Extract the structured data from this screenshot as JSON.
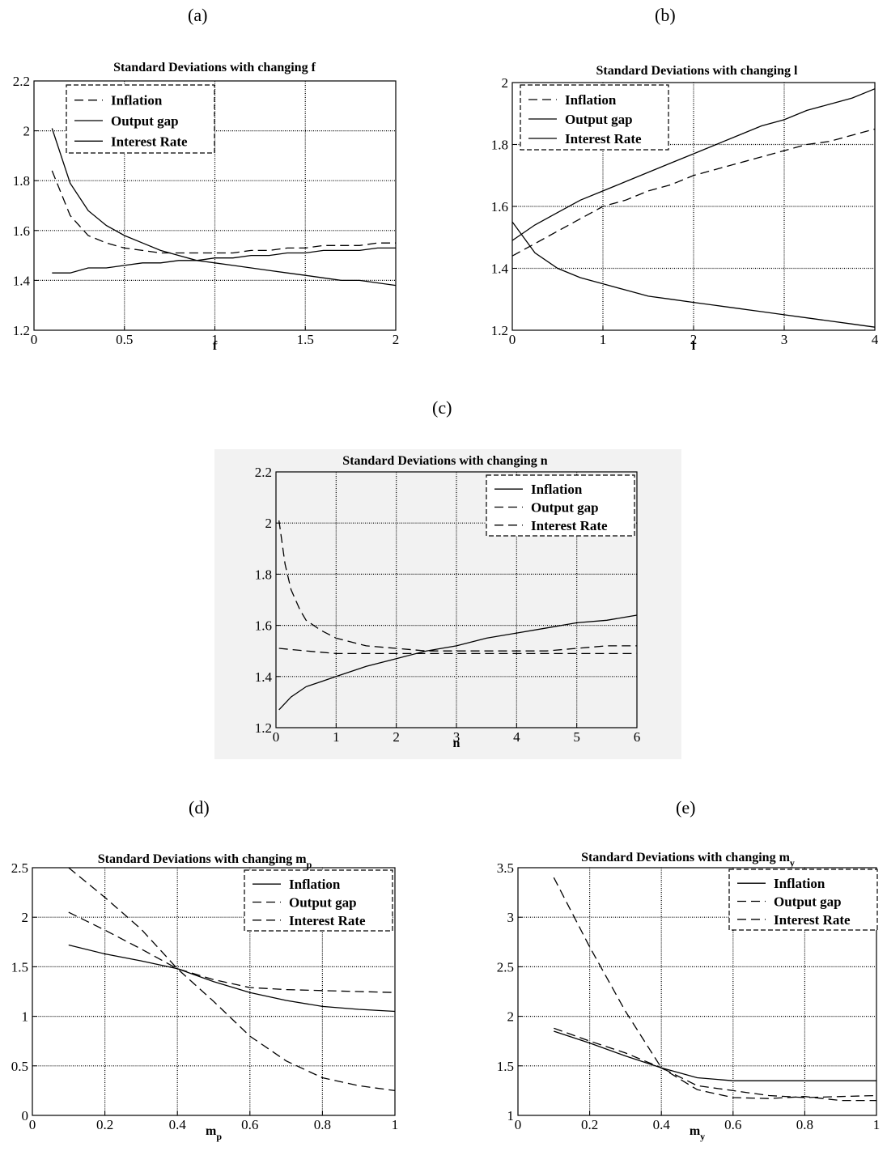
{
  "labels": {
    "a": "(a)",
    "b": "(b)",
    "c": "(c)",
    "d": "(d)",
    "e": "(e)"
  },
  "chart_data": [
    {
      "type": "line",
      "title": "Standard Deviations with changing f",
      "xlabel": "f",
      "xlim": [
        0,
        2
      ],
      "ylim": [
        1.2,
        2.2
      ],
      "xticks": [
        0,
        0.5,
        1,
        1.5,
        2
      ],
      "xtick_labels": [
        "0",
        "0.5",
        "1",
        "1.5",
        "2"
      ],
      "yticks": [
        1.2,
        1.4,
        1.6,
        1.8,
        2,
        2.2
      ],
      "ytick_labels": [
        "1.2",
        "1.4",
        "1.6",
        "1.8",
        "2",
        "2.2"
      ],
      "grid": true,
      "legend_position": "top-left",
      "series": [
        {
          "name": "Inflation",
          "dash": "long",
          "x": [
            0.1,
            0.2,
            0.3,
            0.4,
            0.5,
            0.6,
            0.7,
            0.8,
            0.9,
            1.0,
            1.1,
            1.2,
            1.3,
            1.4,
            1.5,
            1.6,
            1.7,
            1.8,
            1.9,
            2.0
          ],
          "y": [
            1.84,
            1.66,
            1.58,
            1.55,
            1.53,
            1.52,
            1.51,
            1.51,
            1.51,
            1.51,
            1.51,
            1.52,
            1.52,
            1.53,
            1.53,
            1.54,
            1.54,
            1.54,
            1.55,
            1.55
          ]
        },
        {
          "name": "Output gap",
          "dash": "solid",
          "x": [
            0.1,
            0.2,
            0.3,
            0.4,
            0.5,
            0.6,
            0.7,
            0.8,
            0.9,
            1.0,
            1.1,
            1.2,
            1.3,
            1.4,
            1.5,
            1.6,
            1.7,
            1.8,
            1.9,
            2.0
          ],
          "y": [
            2.01,
            1.79,
            1.68,
            1.62,
            1.58,
            1.55,
            1.52,
            1.5,
            1.48,
            1.47,
            1.46,
            1.45,
            1.44,
            1.43,
            1.42,
            1.41,
            1.4,
            1.4,
            1.39,
            1.38
          ]
        },
        {
          "name": "Interest Rate",
          "dash": "solid",
          "x": [
            0.1,
            0.2,
            0.3,
            0.4,
            0.5,
            0.6,
            0.7,
            0.8,
            0.9,
            1.0,
            1.1,
            1.2,
            1.3,
            1.4,
            1.5,
            1.6,
            1.7,
            1.8,
            1.9,
            2.0
          ],
          "y": [
            1.43,
            1.43,
            1.45,
            1.45,
            1.46,
            1.47,
            1.47,
            1.48,
            1.48,
            1.49,
            1.49,
            1.5,
            1.5,
            1.51,
            1.51,
            1.52,
            1.52,
            1.52,
            1.53,
            1.53
          ]
        }
      ]
    },
    {
      "type": "line",
      "title": "Standard Deviations with changing l",
      "xlabel": "l",
      "xlim": [
        0,
        4
      ],
      "ylim": [
        1.2,
        2
      ],
      "xticks": [
        0,
        1,
        2,
        3,
        4
      ],
      "xtick_labels": [
        "0",
        "1",
        "2",
        "3",
        "4"
      ],
      "yticks": [
        1.2,
        1.4,
        1.6,
        1.8,
        2
      ],
      "ytick_labels": [
        "1.2",
        "1.4",
        "1.6",
        "1.8",
        "2"
      ],
      "grid": true,
      "legend_position": "top-left",
      "series": [
        {
          "name": "Inflation",
          "dash": "long",
          "x": [
            0,
            0.25,
            0.5,
            0.75,
            1,
            1.25,
            1.5,
            1.75,
            2,
            2.25,
            2.5,
            2.75,
            3,
            3.25,
            3.5,
            3.75,
            4
          ],
          "y": [
            1.44,
            1.48,
            1.52,
            1.56,
            1.6,
            1.62,
            1.65,
            1.67,
            1.7,
            1.72,
            1.74,
            1.76,
            1.78,
            1.8,
            1.81,
            1.83,
            1.85
          ]
        },
        {
          "name": "Output gap",
          "dash": "solid",
          "x": [
            0,
            0.25,
            0.5,
            0.75,
            1,
            1.25,
            1.5,
            1.75,
            2,
            2.25,
            2.5,
            2.75,
            3,
            3.25,
            3.5,
            3.75,
            4
          ],
          "y": [
            1.49,
            1.54,
            1.58,
            1.62,
            1.65,
            1.68,
            1.71,
            1.74,
            1.77,
            1.8,
            1.83,
            1.86,
            1.88,
            1.91,
            1.93,
            1.95,
            1.98
          ]
        },
        {
          "name": "Interest Rate",
          "dash": "solid",
          "x": [
            0,
            0.25,
            0.5,
            0.75,
            1,
            1.25,
            1.5,
            1.75,
            2,
            2.25,
            2.5,
            2.75,
            3,
            3.25,
            3.5,
            3.75,
            4
          ],
          "y": [
            1.55,
            1.45,
            1.4,
            1.37,
            1.35,
            1.33,
            1.31,
            1.3,
            1.29,
            1.28,
            1.27,
            1.26,
            1.25,
            1.24,
            1.23,
            1.22,
            1.21
          ]
        }
      ]
    },
    {
      "type": "line",
      "title": "Standard Deviations with changing n",
      "xlabel": "n",
      "xlim": [
        0,
        6
      ],
      "ylim": [
        1.2,
        2.2
      ],
      "xticks": [
        0,
        1,
        2,
        3,
        4,
        5,
        6
      ],
      "xtick_labels": [
        "0",
        "1",
        "2",
        "3",
        "4",
        "5",
        "6"
      ],
      "yticks": [
        1.2,
        1.4,
        1.6,
        1.8,
        2,
        2.2
      ],
      "ytick_labels": [
        "1.2",
        "1.4",
        "1.6",
        "1.8",
        "2",
        "2.2"
      ],
      "grid": true,
      "legend_position": "top-right",
      "series": [
        {
          "name": "Inflation",
          "dash": "solid",
          "x": [
            0.05,
            0.25,
            0.5,
            0.75,
            1,
            1.5,
            2,
            2.5,
            3,
            3.5,
            4,
            4.5,
            5,
            5.5,
            6
          ],
          "y": [
            1.27,
            1.32,
            1.36,
            1.38,
            1.4,
            1.44,
            1.47,
            1.5,
            1.52,
            1.55,
            1.57,
            1.59,
            1.61,
            1.62,
            1.64
          ]
        },
        {
          "name": "Output gap",
          "dash": "long",
          "x": [
            0.05,
            0.15,
            0.25,
            0.4,
            0.5,
            0.75,
            1,
            1.5,
            2,
            2.5,
            3,
            3.5,
            4,
            4.5,
            5,
            5.5,
            6
          ],
          "y": [
            2.01,
            1.84,
            1.74,
            1.66,
            1.62,
            1.58,
            1.55,
            1.52,
            1.51,
            1.5,
            1.5,
            1.5,
            1.5,
            1.5,
            1.51,
            1.52,
            1.52
          ]
        },
        {
          "name": "Interest Rate",
          "dash": "long",
          "x": [
            0.05,
            0.5,
            1,
            1.5,
            2,
            2.5,
            3,
            3.5,
            4,
            4.5,
            5,
            5.5,
            6
          ],
          "y": [
            1.51,
            1.5,
            1.49,
            1.49,
            1.49,
            1.49,
            1.49,
            1.49,
            1.49,
            1.49,
            1.49,
            1.49,
            1.49
          ]
        }
      ]
    },
    {
      "type": "line",
      "title": "Standard Deviations with changing m",
      "title_subscript": "p",
      "xlabel": "m",
      "xlabel_subscript": "p",
      "xlim": [
        0,
        1
      ],
      "ylim": [
        0,
        2.5
      ],
      "xticks": [
        0,
        0.2,
        0.4,
        0.6,
        0.8,
        1
      ],
      "xtick_labels": [
        "0",
        "0.2",
        "0.4",
        "0.6",
        "0.8",
        "1"
      ],
      "yticks": [
        0,
        0.5,
        1,
        1.5,
        2,
        2.5
      ],
      "ytick_labels": [
        "0",
        "0.5",
        "1",
        "1.5",
        "2",
        "2.5"
      ],
      "grid": true,
      "legend_position": "top-right",
      "series": [
        {
          "name": "Inflation",
          "dash": "solid",
          "x": [
            0.1,
            0.2,
            0.3,
            0.4,
            0.5,
            0.6,
            0.7,
            0.8,
            0.9,
            1.0
          ],
          "y": [
            1.72,
            1.63,
            1.56,
            1.48,
            1.35,
            1.24,
            1.16,
            1.1,
            1.07,
            1.05
          ]
        },
        {
          "name": "Output gap",
          "dash": "long",
          "x": [
            0.1,
            0.2,
            0.3,
            0.4,
            0.5,
            0.6,
            0.7,
            0.8,
            0.9,
            1.0
          ],
          "y": [
            2.05,
            1.87,
            1.68,
            1.48,
            1.37,
            1.29,
            1.27,
            1.26,
            1.25,
            1.24
          ]
        },
        {
          "name": "Interest Rate",
          "dash": "long",
          "x": [
            0.1,
            0.2,
            0.3,
            0.4,
            0.5,
            0.6,
            0.7,
            0.8,
            0.9,
            1.0
          ],
          "y": [
            2.5,
            2.2,
            1.88,
            1.48,
            1.15,
            0.8,
            0.55,
            0.38,
            0.3,
            0.25
          ]
        }
      ]
    },
    {
      "type": "line",
      "title": "Standard Deviations with changing m",
      "title_subscript": "y",
      "xlabel": "m",
      "xlabel_subscript": "y",
      "xlim": [
        0,
        1
      ],
      "ylim": [
        1,
        3.5
      ],
      "xticks": [
        0,
        0.2,
        0.4,
        0.6,
        0.8,
        1
      ],
      "xtick_labels": [
        "0",
        "0.2",
        "0.4",
        "0.6",
        "0.8",
        "1"
      ],
      "yticks": [
        1,
        1.5,
        2,
        2.5,
        3,
        3.5
      ],
      "ytick_labels": [
        "1",
        "1.5",
        "2",
        "2.5",
        "3",
        "3.5"
      ],
      "grid": true,
      "legend_position": "top-right",
      "series": [
        {
          "name": "Inflation",
          "dash": "solid",
          "x": [
            0.1,
            0.2,
            0.3,
            0.4,
            0.5,
            0.6,
            0.7,
            0.8,
            0.9,
            1.0
          ],
          "y": [
            1.85,
            1.73,
            1.6,
            1.48,
            1.38,
            1.35,
            1.35,
            1.35,
            1.35,
            1.35
          ]
        },
        {
          "name": "Output gap",
          "dash": "long",
          "x": [
            0.1,
            0.2,
            0.3,
            0.4,
            0.5,
            0.6,
            0.7,
            0.8,
            0.9,
            1.0
          ],
          "y": [
            3.4,
            2.7,
            2.05,
            1.48,
            1.3,
            1.25,
            1.2,
            1.18,
            1.19,
            1.2
          ]
        },
        {
          "name": "Interest Rate",
          "dash": "long",
          "x": [
            0.1,
            0.2,
            0.3,
            0.4,
            0.5,
            0.6,
            0.7,
            0.8,
            0.9,
            1.0
          ],
          "y": [
            1.88,
            1.75,
            1.63,
            1.48,
            1.26,
            1.18,
            1.17,
            1.19,
            1.15,
            1.15
          ]
        }
      ]
    }
  ]
}
